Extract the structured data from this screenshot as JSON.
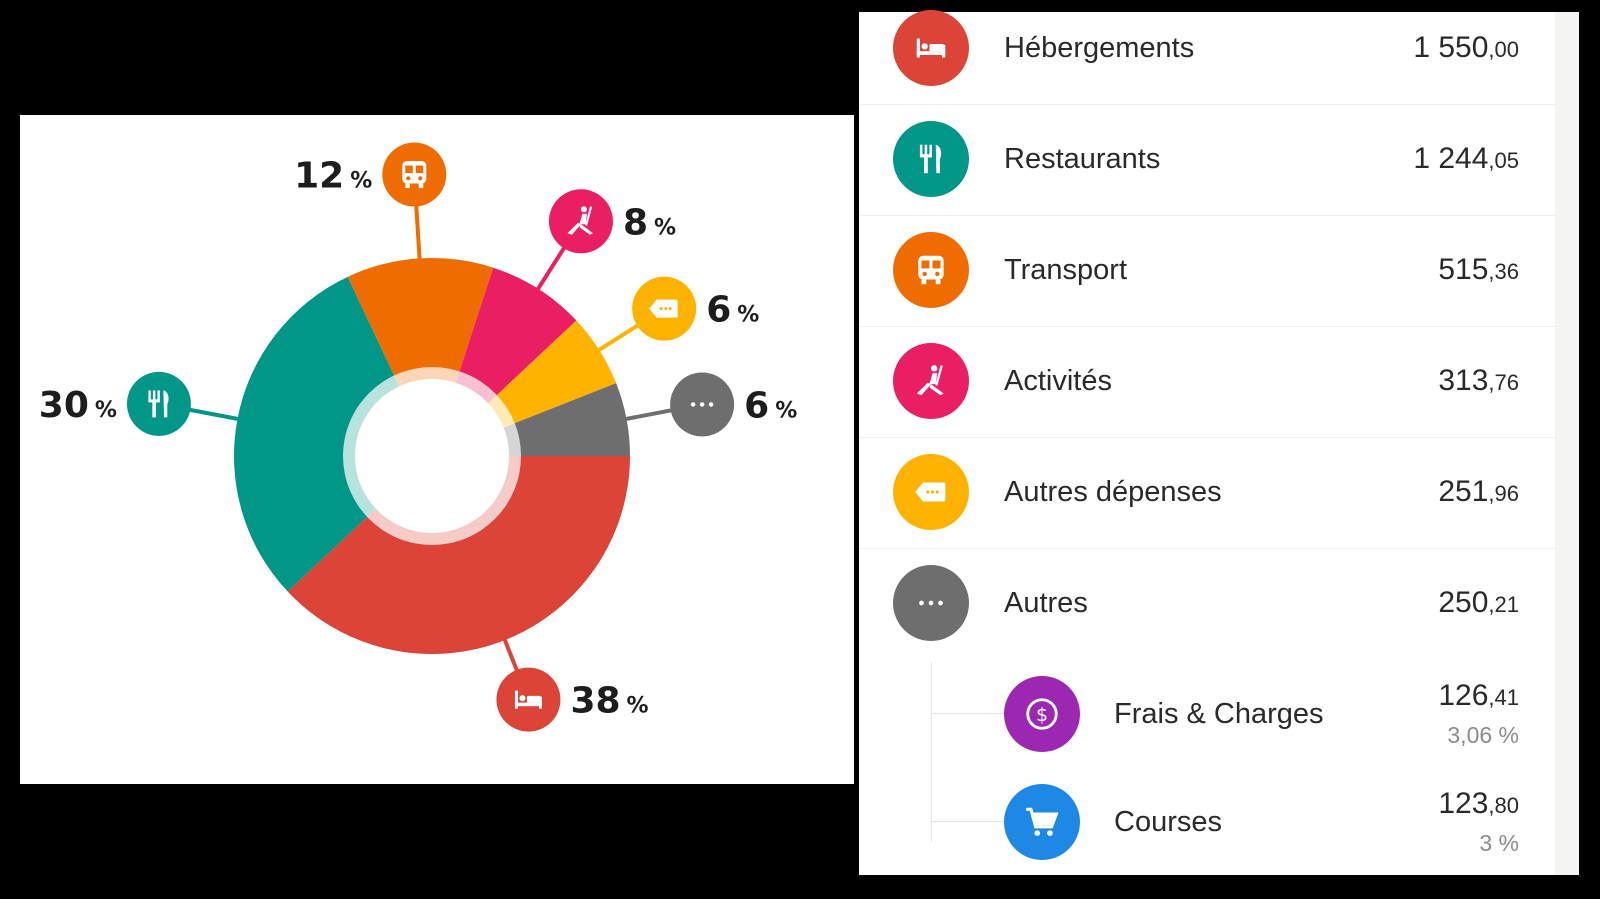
{
  "chart_data": {
    "type": "pie",
    "variant": "donut",
    "slices": [
      {
        "name": "Hébergements",
        "value": 38,
        "color": "#db4437",
        "icon": "bed-icon"
      },
      {
        "name": "Restaurants",
        "value": 30,
        "color": "#009688",
        "icon": "fork-knife-icon"
      },
      {
        "name": "Transport",
        "value": 12,
        "color": "#ef6c00",
        "icon": "train-icon"
      },
      {
        "name": "Activités",
        "value": 8,
        "color": "#e91e63",
        "icon": "kayak-icon"
      },
      {
        "name": "Autres dépenses",
        "value": 6,
        "color": "#ffb300",
        "icon": "tag-icon"
      },
      {
        "name": "Autres",
        "value": 6,
        "color": "#6e6e6e",
        "icon": "more-dots-icon"
      }
    ],
    "labels": [
      {
        "text": "38",
        "unit": "%"
      },
      {
        "text": "30",
        "unit": "%"
      },
      {
        "text": "12",
        "unit": "%"
      },
      {
        "text": "8",
        "unit": "%"
      },
      {
        "text": "6",
        "unit": "%"
      },
      {
        "text": "6",
        "unit": "%"
      }
    ]
  },
  "list": {
    "items": [
      {
        "name": "Hébergements",
        "amount_int": "1 550",
        "amount_dec": ",00",
        "color": "#db4437",
        "icon": "bed-icon"
      },
      {
        "name": "Restaurants",
        "amount_int": "1 244",
        "amount_dec": ",05",
        "color": "#009688",
        "icon": "fork-knife-icon"
      },
      {
        "name": "Transport",
        "amount_int": "515",
        "amount_dec": ",36",
        "color": "#ef6c00",
        "icon": "train-icon"
      },
      {
        "name": "Activités",
        "amount_int": "313",
        "amount_dec": ",76",
        "color": "#e91e63",
        "icon": "kayak-icon"
      },
      {
        "name": "Autres dépenses",
        "amount_int": "251",
        "amount_dec": ",96",
        "color": "#ffb300",
        "icon": "tag-icon"
      },
      {
        "name": "Autres",
        "amount_int": "250",
        "amount_dec": ",21",
        "color": "#6e6e6e",
        "icon": "more-dots-icon"
      }
    ],
    "sub_items": [
      {
        "name": "Frais & Charges",
        "amount_int": "126",
        "amount_dec": ",41",
        "percent": "3,06 %",
        "color": "#9c27b0",
        "icon": "dollar-icon"
      },
      {
        "name": "Courses",
        "amount_int": "123",
        "amount_dec": ",80",
        "percent": "3 %",
        "color": "#1e88e5",
        "icon": "cart-icon"
      }
    ]
  }
}
